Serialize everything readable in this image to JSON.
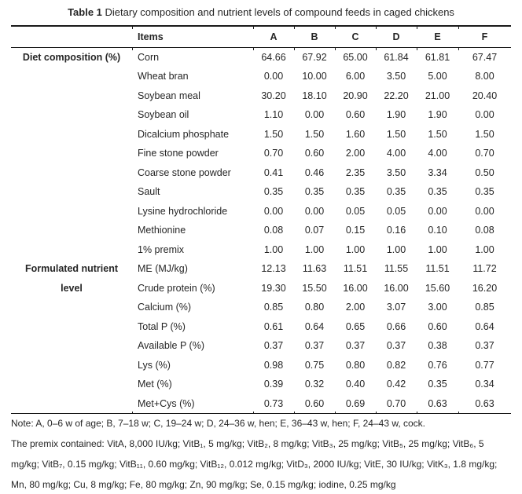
{
  "title": {
    "label": "Table 1",
    "text": " Dietary composition and nutrient levels of compound feeds in caged chickens"
  },
  "table": {
    "items_header": "Items",
    "columns": [
      "A",
      "B",
      "C",
      "D",
      "E",
      "F"
    ],
    "sections": [
      {
        "label_lines": [
          "Diet composition (%)"
        ],
        "rows": [
          {
            "item": "Corn",
            "values": [
              "64.66",
              "67.92",
              "65.00",
              "61.84",
              "61.81",
              "67.47"
            ]
          },
          {
            "item": "Wheat bran",
            "values": [
              "0.00",
              "10.00",
              "6.00",
              "3.50",
              "5.00",
              "8.00"
            ]
          },
          {
            "item": "Soybean meal",
            "values": [
              "30.20",
              "18.10",
              "20.90",
              "22.20",
              "21.00",
              "20.40"
            ]
          },
          {
            "item": "Soybean oil",
            "values": [
              "1.10",
              "0.00",
              "0.60",
              "1.90",
              "1.90",
              "0.00"
            ]
          },
          {
            "item": "Dicalcium phosphate",
            "values": [
              "1.50",
              "1.50",
              "1.60",
              "1.50",
              "1.50",
              "1.50"
            ]
          },
          {
            "item": "Fine stone powder",
            "values": [
              "0.70",
              "0.60",
              "2.00",
              "4.00",
              "4.00",
              "0.70"
            ]
          },
          {
            "item": "Coarse stone powder",
            "values": [
              "0.41",
              "0.46",
              "2.35",
              "3.50",
              "3.34",
              "0.50"
            ]
          },
          {
            "item": "Sault",
            "values": [
              "0.35",
              "0.35",
              "0.35",
              "0.35",
              "0.35",
              "0.35"
            ]
          },
          {
            "item": "Lysine hydrochloride",
            "values": [
              "0.00",
              "0.00",
              "0.05",
              "0.05",
              "0.00",
              "0.00"
            ]
          },
          {
            "item": "Methionine",
            "values": [
              "0.08",
              "0.07",
              "0.15",
              "0.16",
              "0.10",
              "0.08"
            ]
          },
          {
            "item": "1% premix",
            "values": [
              "1.00",
              "1.00",
              "1.00",
              "1.00",
              "1.00",
              "1.00"
            ]
          }
        ]
      },
      {
        "label_lines": [
          "Formulated nutrient",
          "level"
        ],
        "rows": [
          {
            "item": "ME (MJ/kg)",
            "values": [
              "12.13",
              "11.63",
              "11.51",
              "11.55",
              "11.51",
              "11.72"
            ]
          },
          {
            "item": "Crude protein (%)",
            "values": [
              "19.30",
              "15.50",
              "16.00",
              "16.00",
              "15.60",
              "16.20"
            ]
          },
          {
            "item": "Calcium (%)",
            "values": [
              "0.85",
              "0.80",
              "2.00",
              "3.07",
              "3.00",
              "0.85"
            ]
          },
          {
            "item": "Total P (%)",
            "values": [
              "0.61",
              "0.64",
              "0.65",
              "0.66",
              "0.60",
              "0.64"
            ]
          },
          {
            "item": "Available P (%)",
            "values": [
              "0.37",
              "0.37",
              "0.37",
              "0.37",
              "0.38",
              "0.37"
            ]
          },
          {
            "item": "Lys (%)",
            "values": [
              "0.98",
              "0.75",
              "0.80",
              "0.82",
              "0.76",
              "0.77"
            ]
          },
          {
            "item": "Met (%)",
            "values": [
              "0.39",
              "0.32",
              "0.40",
              "0.42",
              "0.35",
              "0.34"
            ]
          },
          {
            "item": "Met+Cys (%)",
            "values": [
              "0.73",
              "0.60",
              "0.69",
              "0.70",
              "0.63",
              "0.63"
            ]
          }
        ]
      }
    ]
  },
  "notes": {
    "lines": [
      "Note: A, 0–6 w of age; B, 7–18 w; C, 19–24 w; D, 24–36 w, hen; E, 36–43 w, hen; F, 24–43 w, cock.",
      "The premix contained: VitA, 8,000 IU/kg; VitB₁, 5 mg/kg; VitB₂, 8 mg/kg; VitB₃, 25 mg/kg; VitB₅, 25 mg/kg; VitB₆, 5",
      "mg/kg; VitB₇, 0.15 mg/kg; VitB₁₁, 0.60 mg/kg; VitB₁₂, 0.012 mg/kg; VitD₃, 2000 IU/kg; VitE, 30 IU/kg; VitK₃, 1.8 mg/kg;",
      "Mn, 80 mg/kg; Cu, 8 mg/kg; Fe, 80 mg/kg; Zn, 90 mg/kg; Se, 0.15 mg/kg; iodine, 0.25 mg/kg"
    ]
  }
}
